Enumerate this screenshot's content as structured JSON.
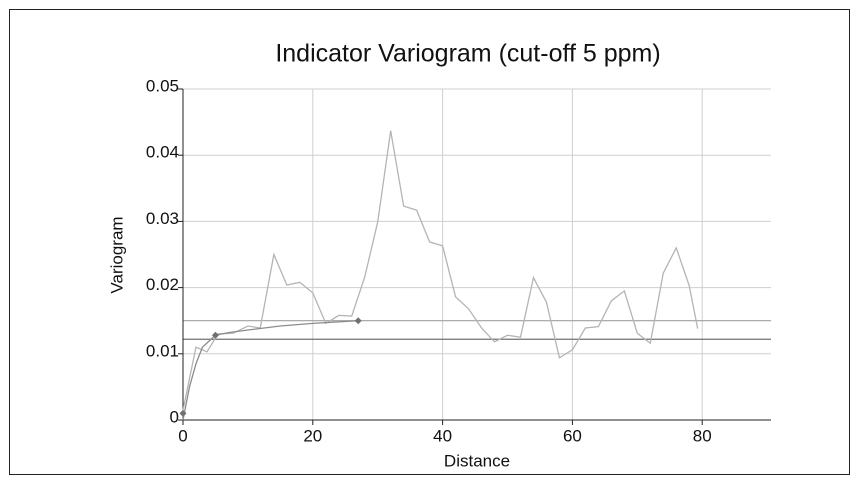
{
  "chart_data": {
    "type": "line",
    "title": "Indicator Variogram (cut-off 5 ppm)",
    "xlabel": "Distance",
    "ylabel": "Variogram",
    "xlim": [
      0,
      90.6
    ],
    "ylim": [
      0,
      0.05
    ],
    "xticks": [
      0,
      20,
      40,
      60,
      80
    ],
    "yticks": [
      0,
      0.01,
      0.02,
      0.03,
      0.04,
      0.05
    ],
    "grid": true,
    "series": [
      {
        "color": "#b4b4b4",
        "x": [
          0,
          2,
          3.7,
          5.4,
          7.7,
          10,
          11.9,
          14,
          16,
          18,
          20,
          22,
          24,
          26,
          28,
          30,
          32,
          34,
          36,
          38,
          40,
          42,
          44,
          46,
          48,
          50,
          52,
          54,
          56,
          58,
          60,
          62,
          64,
          66,
          68,
          70,
          72,
          74,
          76,
          78,
          79.3
        ],
        "values": [
          0.0015,
          0.011,
          0.0103,
          0.013,
          0.0131,
          0.0142,
          0.0139,
          0.025,
          0.0204,
          0.0208,
          0.0192,
          0.0146,
          0.0158,
          0.0157,
          0.0216,
          0.0299,
          0.0437,
          0.0323,
          0.0317,
          0.0269,
          0.0263,
          0.0186,
          0.0168,
          0.0139,
          0.0118,
          0.0128,
          0.0125,
          0.0215,
          0.0178,
          0.0094,
          0.0106,
          0.0139,
          0.0141,
          0.018,
          0.0195,
          0.0131,
          0.0116,
          0.0222,
          0.026,
          0.0203,
          0.0138
        ]
      },
      {
        "color": "#8c8c8c",
        "x": [
          0,
          1,
          2,
          3,
          5,
          7,
          10,
          15,
          20,
          27
        ],
        "values": [
          0,
          0.005,
          0.0085,
          0.011,
          0.0128,
          0.0132,
          0.0136,
          0.0142,
          0.0146,
          0.015
        ]
      }
    ],
    "markers": {
      "color": "#707070",
      "x": [
        0,
        5,
        27
      ],
      "values": [
        0.001,
        0.0128,
        0.015
      ]
    },
    "reference_lines": {
      "colors": [
        "#a0a0a0",
        "#707070"
      ],
      "values": [
        0.015,
        0.0122
      ]
    }
  }
}
